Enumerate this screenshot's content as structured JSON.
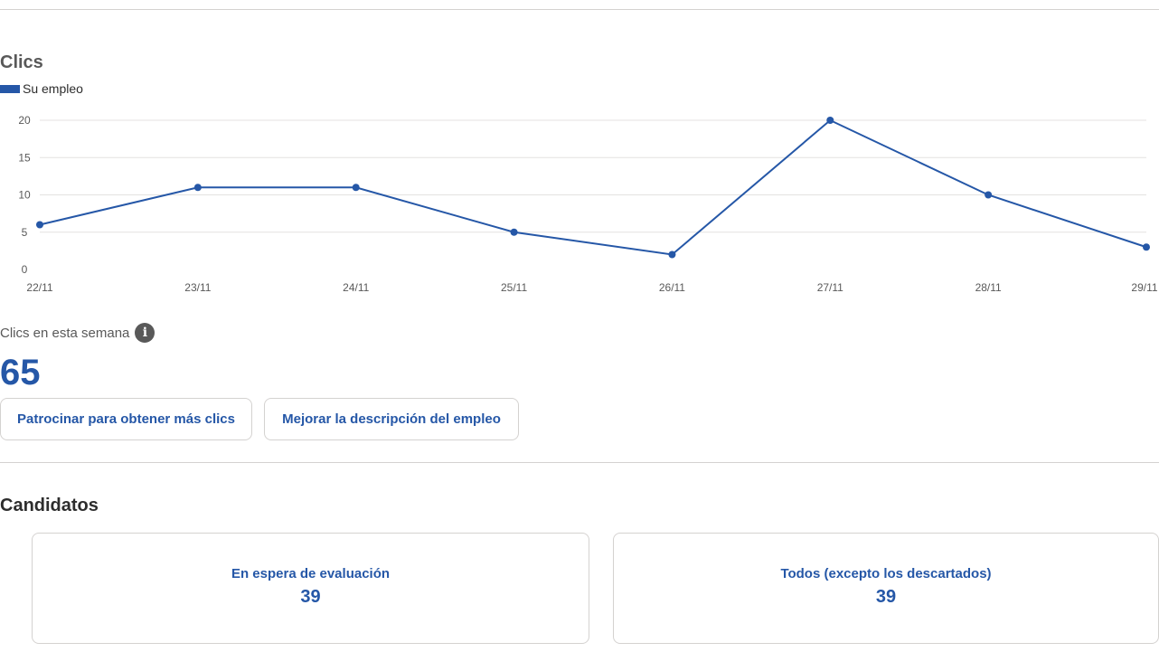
{
  "clicks_section": {
    "title": "Clics",
    "legend_label": "Su empleo",
    "week_label": "Clics en esta semana",
    "week_count": "65",
    "sponsor_button": "Patrocinar para obtener más clics",
    "improve_button": "Mejorar la descripción del empleo"
  },
  "chart_data": {
    "type": "line",
    "x": [
      "22/11",
      "23/11",
      "24/11",
      "25/11",
      "26/11",
      "27/11",
      "28/11",
      "29/11"
    ],
    "series": [
      {
        "name": "Su empleo",
        "values": [
          6,
          11,
          11,
          5,
          2,
          20,
          10,
          3
        ],
        "color": "#2557a7"
      }
    ],
    "ylim": [
      0,
      20
    ],
    "yticks": [
      0,
      5,
      10,
      15,
      20
    ],
    "grid": true,
    "legend": "top-left"
  },
  "candidates_section": {
    "title": "Candidatos",
    "cards": [
      {
        "label": "En espera de evaluación",
        "count": "39"
      },
      {
        "label": "Todos (excepto los descartados)",
        "count": "39"
      }
    ]
  },
  "icons": {
    "info": "info-icon"
  },
  "colors": {
    "accent": "#2557a7",
    "muted_text": "#595959",
    "border": "#d4d2d0"
  }
}
